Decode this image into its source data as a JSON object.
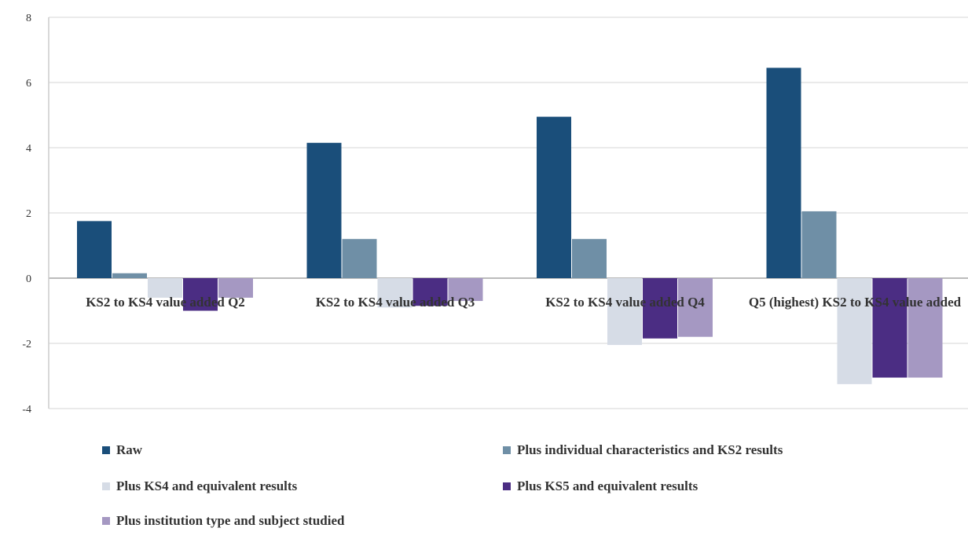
{
  "chart_data": {
    "type": "bar",
    "categories": [
      "KS2 to KS4 value added Q2",
      "KS2 to KS4 value added Q3",
      "KS2 to KS4 value added Q4",
      "Q5 (highest) KS2 to KS4 value added"
    ],
    "series": [
      {
        "name": "Raw",
        "color": "#1a4e7a",
        "values": [
          1.75,
          4.15,
          4.95,
          6.45
        ]
      },
      {
        "name": "Plus individual characteristics and KS2 results",
        "color": "#6f8fa6",
        "values": [
          0.15,
          1.2,
          1.2,
          2.05
        ]
      },
      {
        "name": "Plus KS4 and equivalent results",
        "color": "#d6dce6",
        "values": [
          -0.6,
          -0.9,
          -2.05,
          -3.25
        ]
      },
      {
        "name": "Plus KS5 and equivalent results",
        "color": "#4b2d83",
        "values": [
          -1.0,
          -0.85,
          -1.85,
          -3.05
        ]
      },
      {
        "name": "Plus institution type and subject studied",
        "color": "#a598c2",
        "values": [
          -0.6,
          -0.7,
          -1.8,
          -3.05
        ]
      }
    ],
    "yticks": [
      -4,
      -2,
      0,
      2,
      4,
      6,
      8
    ],
    "ylim": [
      -4,
      8
    ],
    "grid": true,
    "legend_position": "bottom"
  }
}
